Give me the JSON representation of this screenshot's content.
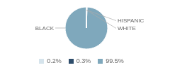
{
  "chart_data": {
    "type": "pie",
    "categories": [
      "BLACK",
      "HISPANIC",
      "WHITE"
    ],
    "values": [
      99.5,
      0.3,
      0.2
    ],
    "value_labels": [
      "99.5%",
      "0.3%",
      "0.2%"
    ],
    "colors": [
      "#7fa8bc",
      "#2e4d6b",
      "#d6e4ec"
    ],
    "legend": "bottom"
  }
}
